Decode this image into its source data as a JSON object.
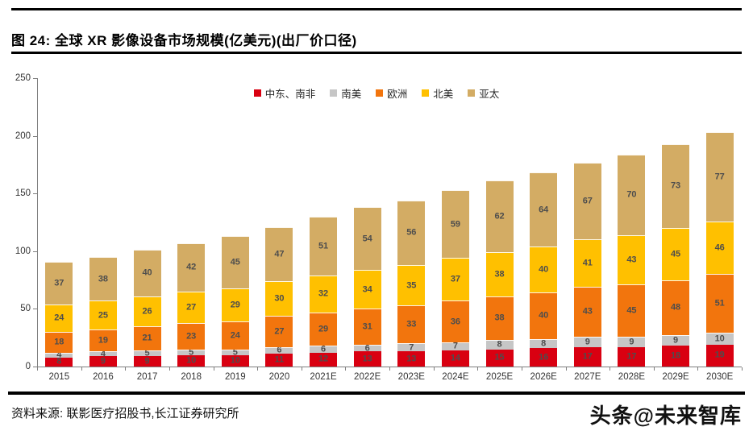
{
  "figure": {
    "title": "图 24: 全球 XR 影像设备市场规模(亿美元)(出厂价口径)",
    "source": "资料来源: 联影医疗招股书,长江证券研究所",
    "watermark": "头条@未来智库"
  },
  "chart_data": {
    "type": "bar",
    "stacked": true,
    "grid": false,
    "legend_position": "top",
    "categories": [
      "2015",
      "2016",
      "2017",
      "2018",
      "2019",
      "2020",
      "2021E",
      "2022E",
      "2023E",
      "2024E",
      "2025E",
      "2026E",
      "2027E",
      "2028E",
      "2029E",
      "2030E"
    ],
    "series": [
      {
        "name": "中东、南非",
        "color": "#d90011",
        "values": [
          8,
          9,
          9,
          10,
          10,
          11,
          12,
          13,
          13,
          14,
          15,
          16,
          17,
          17,
          18,
          19
        ]
      },
      {
        "name": "南美",
        "color": "#c6c6c6",
        "values": [
          4,
          4,
          5,
          5,
          5,
          6,
          6,
          6,
          7,
          7,
          8,
          8,
          9,
          9,
          9,
          10
        ]
      },
      {
        "name": "欧洲",
        "color": "#f2750d",
        "values": [
          18,
          19,
          21,
          23,
          24,
          27,
          29,
          31,
          33,
          36,
          38,
          40,
          43,
          45,
          48,
          51
        ]
      },
      {
        "name": "北美",
        "color": "#ffc000",
        "values": [
          24,
          25,
          26,
          27,
          29,
          30,
          32,
          34,
          35,
          37,
          38,
          40,
          41,
          43,
          45,
          46
        ]
      },
      {
        "name": "亚太",
        "color": "#d3ac64",
        "values": [
          37,
          38,
          40,
          42,
          45,
          47,
          51,
          54,
          56,
          59,
          62,
          64,
          67,
          70,
          73,
          77
        ]
      }
    ],
    "totals": [
      91,
      95,
      101,
      107,
      113,
      121,
      130,
      138,
      144,
      153,
      161,
      168,
      177,
      184,
      193,
      203
    ],
    "ylim": [
      0,
      250
    ],
    "yticks": [
      0,
      50,
      100,
      150,
      200,
      250
    ],
    "ylabel": "",
    "xlabel": ""
  }
}
